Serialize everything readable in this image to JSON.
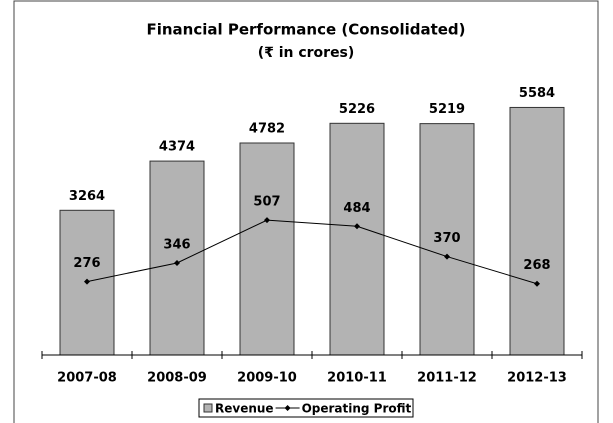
{
  "chart_data": {
    "type": "bar-line",
    "title": "Financial Performance (Consolidated)",
    "subtitle": "(₹ in crores)",
    "categories": [
      "2007-08",
      "2008-09",
      "2009-10",
      "2010-11",
      "2011-12",
      "2012-13"
    ],
    "series": [
      {
        "name": "Revenue",
        "type": "bar",
        "color": "#b3b3b3",
        "values": [
          3264,
          4374,
          4782,
          5226,
          5219,
          5584
        ]
      },
      {
        "name": "Operating Profit",
        "type": "line",
        "color": "#000000",
        "axis": "y2",
        "values": [
          276,
          346,
          507,
          484,
          370,
          268
        ]
      }
    ],
    "ylim": [
      0,
      6000
    ],
    "y2lim": [
      0,
      1000
    ],
    "legend": "bottom"
  }
}
